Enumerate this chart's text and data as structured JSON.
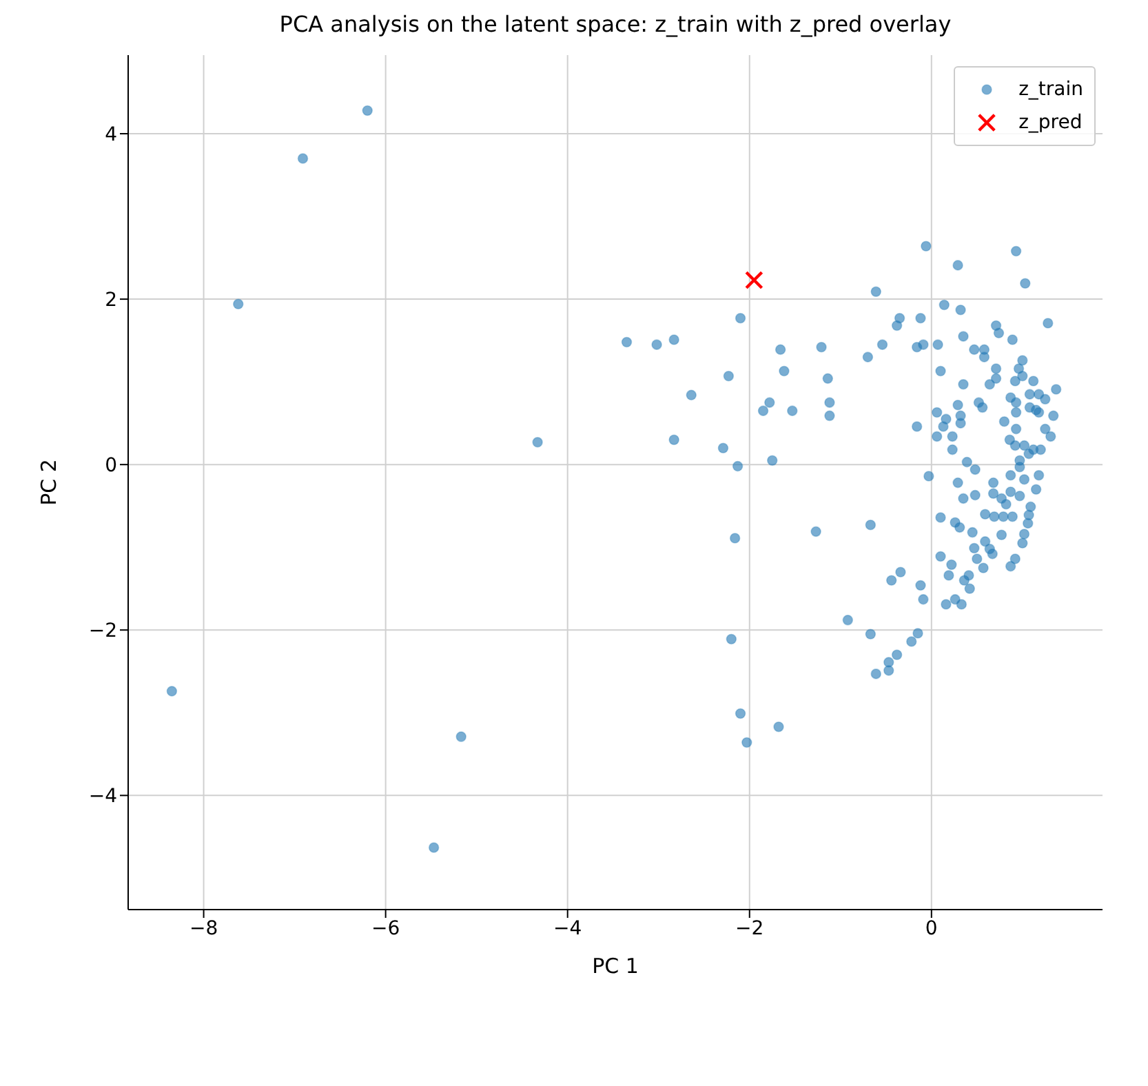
{
  "chart_data": {
    "type": "scatter",
    "title": "PCA analysis on the latent space: z_train with z_pred overlay",
    "xlabel": "PC 1",
    "ylabel": "PC 2",
    "xlim": [
      -8.83,
      1.88
    ],
    "ylim": [
      -5.38,
      4.95
    ],
    "xticks": [
      -8,
      -6,
      -4,
      -2,
      0
    ],
    "yticks": [
      -4,
      -2,
      0,
      2,
      4
    ],
    "grid": true,
    "legend": "top right",
    "series": [
      {
        "name": "z_train",
        "color": "#1f77b4",
        "marker": "circle",
        "x": [
          -6.2,
          -6.91,
          -7.62,
          -4.33,
          -8.35,
          -5.17,
          -5.47,
          -2.1,
          -3.35,
          -3.02,
          -2.83,
          -1.66,
          -1.21,
          -0.7,
          -0.61,
          -2.23,
          -1.62,
          -1.14,
          -2.64,
          -1.78,
          -1.85,
          -1.53,
          -1.12,
          -1.12,
          -2.83,
          -2.29,
          -2.13,
          -1.75,
          -0.06,
          0.93,
          0.29,
          1.03,
          0.14,
          0.32,
          -0.35,
          -0.38,
          -0.12,
          1.28,
          0.71,
          0.74,
          0.35,
          0.89,
          -0.54,
          -0.16,
          -0.09,
          0.07,
          0.47,
          0.58,
          0.58,
          1.0,
          0.96,
          0.71,
          0.1,
          1.0,
          0.92,
          1.12,
          0.71,
          0.64,
          0.35,
          1.37,
          1.08,
          1.18,
          1.25,
          0.87,
          0.93,
          0.52,
          0.56,
          0.29,
          1.08,
          1.15,
          1.18,
          1.34,
          0.93,
          0.32,
          0.32,
          0.06,
          0.16,
          0.13,
          0.8,
          0.93,
          1.25,
          -0.16,
          0.06,
          0.23,
          1.31,
          0.86,
          1.02,
          1.12,
          1.2,
          0.92,
          0.23,
          0.39,
          0.97,
          1.07,
          0.48,
          -0.03,
          0.29,
          0.35,
          0.48,
          0.68,
          0.87,
          0.97,
          1.18,
          1.02,
          1.15,
          0.68,
          0.77,
          0.87,
          0.97,
          0.82,
          1.09,
          0.59,
          0.69,
          0.79,
          0.89,
          1.07,
          0.1,
          0.26,
          0.31,
          1.06,
          0.45,
          0.77,
          1.02,
          -0.67,
          0.59,
          1.0,
          0.47,
          0.64,
          0.67,
          0.1,
          0.5,
          0.92,
          0.87,
          0.22,
          0.57,
          -0.34,
          0.19,
          0.41,
          -0.44,
          0.36,
          -0.12,
          0.42,
          -0.09,
          0.16,
          0.26,
          0.33,
          -0.92,
          -0.67,
          -0.15,
          -0.22,
          -0.38,
          -0.47,
          -0.47,
          -0.61,
          -2.16,
          -1.27,
          -2.2,
          -2.1,
          -1.68,
          -2.03
        ],
        "values": [
          4.28,
          3.7,
          1.94,
          0.27,
          -2.74,
          -3.29,
          -4.63,
          1.77,
          1.48,
          1.45,
          1.51,
          1.39,
          1.42,
          1.3,
          2.09,
          1.07,
          1.13,
          1.04,
          0.84,
          0.75,
          0.65,
          0.65,
          0.75,
          0.59,
          0.3,
          0.2,
          -0.02,
          0.05,
          2.64,
          2.58,
          2.41,
          2.19,
          1.93,
          1.87,
          1.77,
          1.68,
          1.77,
          1.71,
          1.68,
          1.59,
          1.55,
          1.51,
          1.45,
          1.42,
          1.45,
          1.45,
          1.39,
          1.39,
          1.3,
          1.26,
          1.16,
          1.16,
          1.13,
          1.07,
          1.01,
          1.01,
          1.04,
          0.97,
          0.97,
          0.91,
          0.85,
          0.85,
          0.79,
          0.81,
          0.75,
          0.75,
          0.69,
          0.72,
          0.69,
          0.66,
          0.63,
          0.59,
          0.63,
          0.59,
          0.5,
          0.63,
          0.55,
          0.46,
          0.52,
          0.43,
          0.43,
          0.46,
          0.34,
          0.34,
          0.34,
          0.3,
          0.23,
          0.18,
          0.18,
          0.23,
          0.18,
          0.03,
          0.05,
          0.13,
          -0.06,
          -0.14,
          -0.22,
          -0.41,
          -0.37,
          -0.22,
          -0.13,
          -0.03,
          -0.13,
          -0.18,
          -0.3,
          -0.35,
          -0.41,
          -0.33,
          -0.38,
          -0.48,
          -0.51,
          -0.6,
          -0.63,
          -0.63,
          -0.63,
          -0.61,
          -0.64,
          -0.7,
          -0.76,
          -0.71,
          -0.82,
          -0.85,
          -0.84,
          -0.73,
          -0.93,
          -0.95,
          -1.01,
          -1.02,
          -1.08,
          -1.11,
          -1.14,
          -1.14,
          -1.23,
          -1.21,
          -1.25,
          -1.3,
          -1.34,
          -1.34,
          -1.4,
          -1.4,
          -1.46,
          -1.5,
          -1.63,
          -1.69,
          -1.63,
          -1.69,
          -1.88,
          -2.05,
          -2.04,
          -2.14,
          -2.3,
          -2.39,
          -2.49,
          -2.53,
          -0.89,
          -0.81,
          -2.11,
          -3.01,
          -3.17,
          -3.36
        ]
      },
      {
        "name": "z_pred",
        "color": "#ff0000",
        "marker": "cross",
        "x": [
          -1.95
        ],
        "values": [
          2.23
        ]
      }
    ]
  }
}
